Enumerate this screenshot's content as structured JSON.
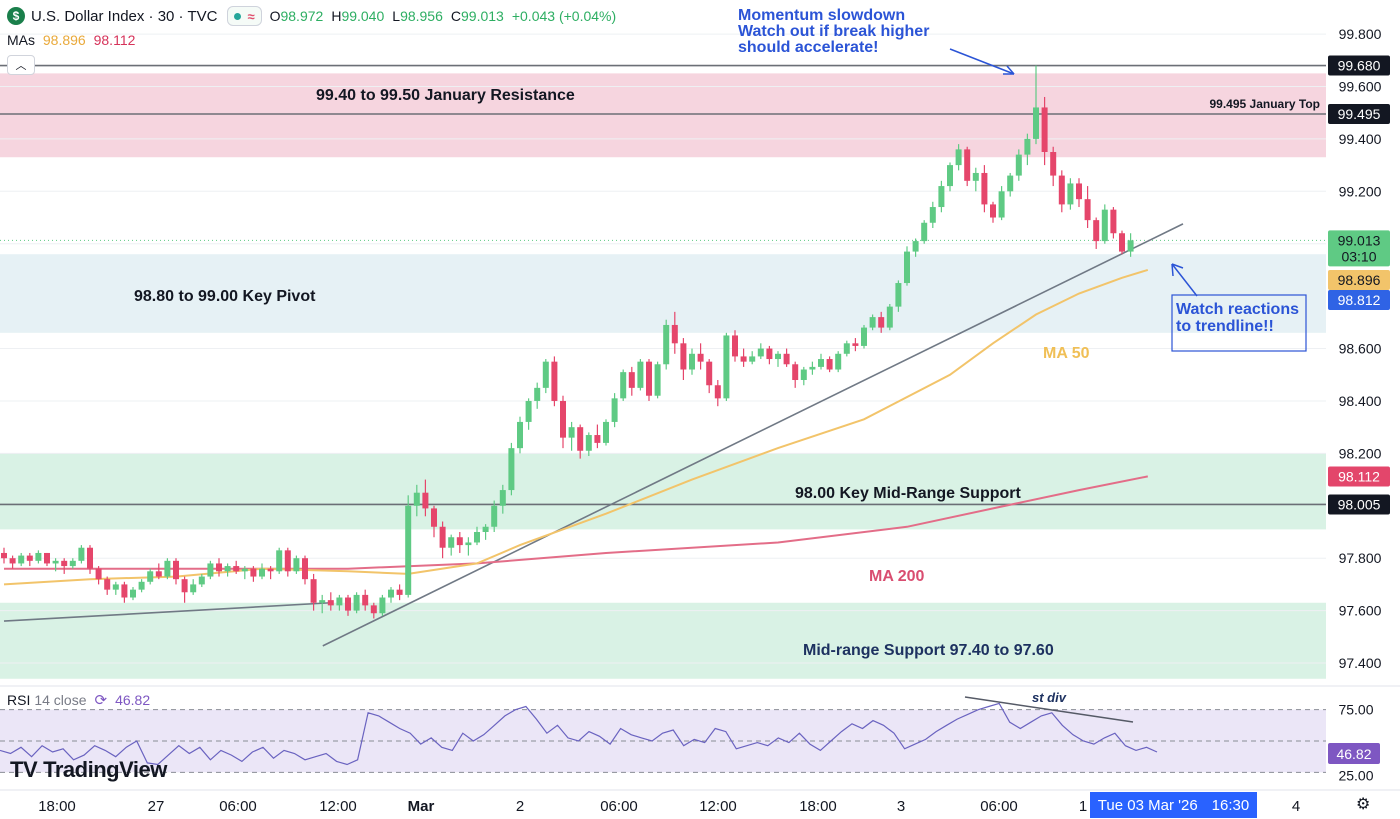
{
  "header": {
    "symbol_badge": "$",
    "title": "U.S. Dollar Index · 30 · TVC",
    "open_label": "O",
    "open": "98.972",
    "high_label": "H",
    "high": "99.040",
    "low_label": "L",
    "low": "98.956",
    "close_label": "C",
    "close": "99.013",
    "change": "+0.043 (+0.04%)"
  },
  "mas_legend": {
    "label": "MAs",
    "ma50_value": "98.896",
    "ma200_value": "98.112"
  },
  "collapse_icon": "chevron-up-icon",
  "rsi_legend": {
    "label": "RSI",
    "params": "14 close",
    "value": "46.82"
  },
  "brand": "TradingView",
  "time_badge": {
    "date": "Tue 03 Mar '26",
    "time": "16:30"
  },
  "colors": {
    "up": "#5fca84",
    "down": "#e5466b",
    "ma50": "#f2c46a",
    "ma200": "#e36d88",
    "resistance_zone": "#f6d5df",
    "pivot_zone": "#e6f1f5",
    "support_zone": "#d9f2e5",
    "annotation_blue": "#2b54d6",
    "rsi_line": "#6a63c0",
    "rsi_fill": "#ebe6f7"
  },
  "chart_data": {
    "type": "candlestick",
    "title": "U.S. Dollar Index · 30 · TVC",
    "price_axis": {
      "ylim": [
        97.32,
        99.93
      ],
      "ticks": [
        99.8,
        99.6,
        99.4,
        99.2,
        99.0,
        98.6,
        98.4,
        98.2,
        97.8,
        97.6,
        97.4
      ],
      "tick_labels": [
        "99.800",
        "99.600",
        "99.400",
        "99.200",
        "",
        "98.600",
        "98.400",
        "98.200",
        "97.800",
        "97.600",
        "97.400"
      ]
    },
    "time_axis": {
      "labels": [
        "18:00",
        "27",
        "06:00",
        "12:00",
        "Mar",
        "2",
        "06:00",
        "12:00",
        "18:00",
        "3",
        "06:00",
        "1",
        "4"
      ]
    },
    "price_badges": [
      {
        "value": "99.680",
        "style": "black"
      },
      {
        "value": "99.495",
        "style": "black"
      },
      {
        "value": "99.013",
        "sub": "03:10",
        "style": "green"
      },
      {
        "value": "98.896",
        "style": "ma50"
      },
      {
        "value": "98.812",
        "style": "blue"
      },
      {
        "value": "98.112",
        "style": "ma200"
      },
      {
        "value": "98.005",
        "style": "black"
      }
    ],
    "zones": [
      {
        "name": "resistance",
        "low": 99.33,
        "high": 99.65,
        "label": "99.40 to 99.50 January Resistance"
      },
      {
        "name": "pivot",
        "low": 98.66,
        "high": 98.96,
        "label": "98.80 to 99.00 Key Pivot"
      },
      {
        "name": "mid-range",
        "low": 97.91,
        "high": 98.2,
        "label": "98.00 Key Mid-Range Support"
      },
      {
        "name": "support",
        "low": 97.34,
        "high": 97.63,
        "label": "Mid-range Support 97.40 to 97.60"
      }
    ],
    "levels": [
      {
        "value": 99.68
      },
      {
        "value": 99.495,
        "label": "99.495 January Top"
      },
      {
        "value": 98.005
      }
    ],
    "annotations": {
      "momentum": [
        "Momentum slowdown",
        "Watch out if break higher",
        "should accelerate!"
      ],
      "trendline_note": [
        "Watch reactions",
        "to trendline!!"
      ],
      "ma50_label": "MA 50",
      "ma200_label": "MA 200",
      "rsi_div_label": "st div"
    },
    "series": [
      {
        "name": "Price (30m candles)",
        "ohlc": [
          [
            97.82,
            97.84,
            97.78,
            97.8
          ],
          [
            97.8,
            97.81,
            97.76,
            97.78
          ],
          [
            97.78,
            97.82,
            97.77,
            97.81
          ],
          [
            97.81,
            97.82,
            97.77,
            97.79
          ],
          [
            97.79,
            97.83,
            97.78,
            97.82
          ],
          [
            97.82,
            97.82,
            97.77,
            97.78
          ],
          [
            97.78,
            97.8,
            97.75,
            97.79
          ],
          [
            97.79,
            97.8,
            97.74,
            97.77
          ],
          [
            97.77,
            97.8,
            97.76,
            97.79
          ],
          [
            97.79,
            97.85,
            97.78,
            97.84
          ],
          [
            97.84,
            97.85,
            97.74,
            97.76
          ],
          [
            97.76,
            97.77,
            97.7,
            97.72
          ],
          [
            97.72,
            97.73,
            97.66,
            97.68
          ],
          [
            97.68,
            97.71,
            97.66,
            97.7
          ],
          [
            97.7,
            97.71,
            97.63,
            97.65
          ],
          [
            97.65,
            97.69,
            97.64,
            97.68
          ],
          [
            97.68,
            97.72,
            97.67,
            97.71
          ],
          [
            97.71,
            97.76,
            97.7,
            97.75
          ],
          [
            97.75,
            97.78,
            97.72,
            97.73
          ],
          [
            97.73,
            97.8,
            97.72,
            97.79
          ],
          [
            97.79,
            97.8,
            97.7,
            97.72
          ],
          [
            97.72,
            97.73,
            97.63,
            97.67
          ],
          [
            97.67,
            97.72,
            97.66,
            97.7
          ],
          [
            97.7,
            97.74,
            97.69,
            97.73
          ],
          [
            97.73,
            97.79,
            97.72,
            97.78
          ],
          [
            97.78,
            97.8,
            97.73,
            97.75
          ],
          [
            97.75,
            97.78,
            97.73,
            97.77
          ],
          [
            97.77,
            97.79,
            97.74,
            97.75
          ],
          [
            97.75,
            97.77,
            97.72,
            97.76
          ],
          [
            97.76,
            97.77,
            97.71,
            97.73
          ],
          [
            97.73,
            97.78,
            97.72,
            97.76
          ],
          [
            97.76,
            97.77,
            97.72,
            97.75
          ],
          [
            97.75,
            97.84,
            97.74,
            97.83
          ],
          [
            97.83,
            97.84,
            97.73,
            97.75
          ],
          [
            97.75,
            97.81,
            97.74,
            97.8
          ],
          [
            97.8,
            97.81,
            97.7,
            97.72
          ],
          [
            97.72,
            97.74,
            97.6,
            97.63
          ],
          [
            97.63,
            97.66,
            97.59,
            97.64
          ],
          [
            97.64,
            97.67,
            97.6,
            97.62
          ],
          [
            97.62,
            97.66,
            97.6,
            97.65
          ],
          [
            97.65,
            97.66,
            97.58,
            97.6
          ],
          [
            97.6,
            97.67,
            97.59,
            97.66
          ],
          [
            97.66,
            97.68,
            97.6,
            97.62
          ],
          [
            97.62,
            97.63,
            97.57,
            97.59
          ],
          [
            97.59,
            97.66,
            97.58,
            97.65
          ],
          [
            97.65,
            97.69,
            97.63,
            97.68
          ],
          [
            97.68,
            97.7,
            97.64,
            97.66
          ],
          [
            97.66,
            98.04,
            97.65,
            98.0
          ],
          [
            98.0,
            98.08,
            97.96,
            98.05
          ],
          [
            98.05,
            98.1,
            97.96,
            97.99
          ],
          [
            97.99,
            98.0,
            97.88,
            97.92
          ],
          [
            97.92,
            97.94,
            97.8,
            97.84
          ],
          [
            97.84,
            97.89,
            97.81,
            97.88
          ],
          [
            97.88,
            97.9,
            97.82,
            97.85
          ],
          [
            97.85,
            97.88,
            97.81,
            97.86
          ],
          [
            97.86,
            97.92,
            97.85,
            97.9
          ],
          [
            97.9,
            97.93,
            97.87,
            97.92
          ],
          [
            97.92,
            98.02,
            97.9,
            98.0
          ],
          [
            98.0,
            98.08,
            97.97,
            98.06
          ],
          [
            98.06,
            98.24,
            98.04,
            98.22
          ],
          [
            98.22,
            98.34,
            98.2,
            98.32
          ],
          [
            98.32,
            98.41,
            98.29,
            98.4
          ],
          [
            98.4,
            98.47,
            98.37,
            98.45
          ],
          [
            98.45,
            98.56,
            98.43,
            98.55
          ],
          [
            98.55,
            98.57,
            98.38,
            98.4
          ],
          [
            98.4,
            98.42,
            98.22,
            98.26
          ],
          [
            98.26,
            98.32,
            98.21,
            98.3
          ],
          [
            98.3,
            98.31,
            98.18,
            98.21
          ],
          [
            98.21,
            98.28,
            98.19,
            98.27
          ],
          [
            98.27,
            98.31,
            98.22,
            98.24
          ],
          [
            98.24,
            98.33,
            98.23,
            98.32
          ],
          [
            98.32,
            98.43,
            98.3,
            98.41
          ],
          [
            98.41,
            98.52,
            98.4,
            98.51
          ],
          [
            98.51,
            98.53,
            98.42,
            98.45
          ],
          [
            98.45,
            98.56,
            98.44,
            98.55
          ],
          [
            98.55,
            98.56,
            98.4,
            98.42
          ],
          [
            98.42,
            98.55,
            98.41,
            98.54
          ],
          [
            98.54,
            98.71,
            98.52,
            98.69
          ],
          [
            98.69,
            98.74,
            98.58,
            98.62
          ],
          [
            98.62,
            98.64,
            98.48,
            98.52
          ],
          [
            98.52,
            98.6,
            98.5,
            98.58
          ],
          [
            98.58,
            98.62,
            98.52,
            98.55
          ],
          [
            98.55,
            98.56,
            98.43,
            98.46
          ],
          [
            98.46,
            98.48,
            98.38,
            98.41
          ],
          [
            98.41,
            98.66,
            98.4,
            98.65
          ],
          [
            98.65,
            98.67,
            98.55,
            98.57
          ],
          [
            98.57,
            98.6,
            98.53,
            98.55
          ],
          [
            98.55,
            98.59,
            98.54,
            98.57
          ],
          [
            98.57,
            98.62,
            98.56,
            98.6
          ],
          [
            98.6,
            98.61,
            98.54,
            98.56
          ],
          [
            98.56,
            98.59,
            98.53,
            98.58
          ],
          [
            98.58,
            98.6,
            98.53,
            98.54
          ],
          [
            98.54,
            98.55,
            98.45,
            98.48
          ],
          [
            98.48,
            98.53,
            98.46,
            98.52
          ],
          [
            98.52,
            98.55,
            98.5,
            98.53
          ],
          [
            98.53,
            98.58,
            98.52,
            98.56
          ],
          [
            98.56,
            98.57,
            98.51,
            98.52
          ],
          [
            98.52,
            98.59,
            98.51,
            98.58
          ],
          [
            98.58,
            98.63,
            98.57,
            98.62
          ],
          [
            98.62,
            98.64,
            98.59,
            98.61
          ],
          [
            98.61,
            98.69,
            98.6,
            98.68
          ],
          [
            98.68,
            98.73,
            98.67,
            98.72
          ],
          [
            98.72,
            98.74,
            98.66,
            98.68
          ],
          [
            98.68,
            98.77,
            98.67,
            98.76
          ],
          [
            98.76,
            98.86,
            98.74,
            98.85
          ],
          [
            98.85,
            98.99,
            98.84,
            98.97
          ],
          [
            98.97,
            99.02,
            98.95,
            99.01
          ],
          [
            99.01,
            99.09,
            99.0,
            99.08
          ],
          [
            99.08,
            99.16,
            99.06,
            99.14
          ],
          [
            99.14,
            99.24,
            99.12,
            99.22
          ],
          [
            99.22,
            99.31,
            99.2,
            99.3
          ],
          [
            99.3,
            99.38,
            99.28,
            99.36
          ],
          [
            99.36,
            99.37,
            99.22,
            99.24
          ],
          [
            99.24,
            99.29,
            99.2,
            99.27
          ],
          [
            99.27,
            99.3,
            99.12,
            99.15
          ],
          [
            99.15,
            99.16,
            99.08,
            99.1
          ],
          [
            99.1,
            99.22,
            99.09,
            99.2
          ],
          [
            99.2,
            99.27,
            99.18,
            99.26
          ],
          [
            99.26,
            99.36,
            99.24,
            99.34
          ],
          [
            99.34,
            99.42,
            99.3,
            99.4
          ],
          [
            99.4,
            99.68,
            99.38,
            99.52
          ],
          [
            99.52,
            99.56,
            99.3,
            99.35
          ],
          [
            99.35,
            99.37,
            99.22,
            99.26
          ],
          [
            99.26,
            99.28,
            99.12,
            99.15
          ],
          [
            99.15,
            99.25,
            99.13,
            99.23
          ],
          [
            99.23,
            99.25,
            99.14,
            99.17
          ],
          [
            99.17,
            99.22,
            99.06,
            99.09
          ],
          [
            99.09,
            99.1,
            98.98,
            99.01
          ],
          [
            99.01,
            99.15,
            99.0,
            99.13
          ],
          [
            99.13,
            99.14,
            99.02,
            99.04
          ],
          [
            99.04,
            99.05,
            98.96,
            98.97
          ],
          [
            98.97,
            99.04,
            98.95,
            99.013
          ]
        ]
      },
      {
        "name": "MA 50",
        "x_index": [
          0,
          10,
          20,
          30,
          40,
          47,
          55,
          60,
          70,
          80,
          90,
          100,
          110,
          115,
          120,
          125,
          130,
          133
        ],
        "values": [
          97.7,
          97.72,
          97.73,
          97.76,
          97.75,
          97.74,
          97.78,
          97.85,
          97.97,
          98.1,
          98.22,
          98.33,
          98.5,
          98.62,
          98.73,
          98.81,
          98.87,
          98.9
        ]
      },
      {
        "name": "MA 200",
        "x_index": [
          0,
          20,
          40,
          55,
          70,
          90,
          105,
          115,
          125,
          133
        ],
        "values": [
          97.76,
          97.76,
          97.76,
          97.78,
          97.82,
          97.86,
          97.92,
          97.99,
          98.06,
          98.112
        ]
      },
      {
        "name": "Trendline",
        "points": [
          [
            0,
            97.56
          ],
          [
            38,
            97.63
          ]
        ],
        "points2": [
          [
            38,
            97.58
          ],
          [
            135,
            99.03
          ]
        ]
      },
      {
        "name": "RSI 14",
        "ylim": [
          20,
          80
        ],
        "levels": [
          70,
          50,
          30
        ],
        "values": [
          44,
          42,
          46,
          40,
          47,
          43,
          45,
          38,
          41,
          47,
          44,
          40,
          46,
          50,
          36,
          35,
          41,
          47,
          42,
          46,
          38,
          44,
          41,
          37,
          43,
          46,
          39,
          44,
          42,
          38,
          40,
          42,
          37,
          35,
          38,
          68,
          66,
          62,
          58,
          55,
          48,
          52,
          46,
          44,
          55,
          50,
          54,
          60,
          66,
          70,
          72,
          64,
          55,
          60,
          52,
          50,
          56,
          53,
          48,
          58,
          54,
          52,
          50,
          55,
          57,
          47,
          51,
          49,
          58,
          56,
          45,
          47,
          49,
          47,
          52,
          49,
          55,
          48,
          44,
          50,
          56,
          61,
          58,
          63,
          60,
          55,
          45,
          48,
          51,
          56,
          60,
          64,
          67,
          70,
          72,
          74,
          62,
          58,
          62,
          66,
          68,
          60,
          54,
          50,
          48,
          52,
          55,
          47,
          44,
          46,
          43
        ]
      }
    ]
  }
}
